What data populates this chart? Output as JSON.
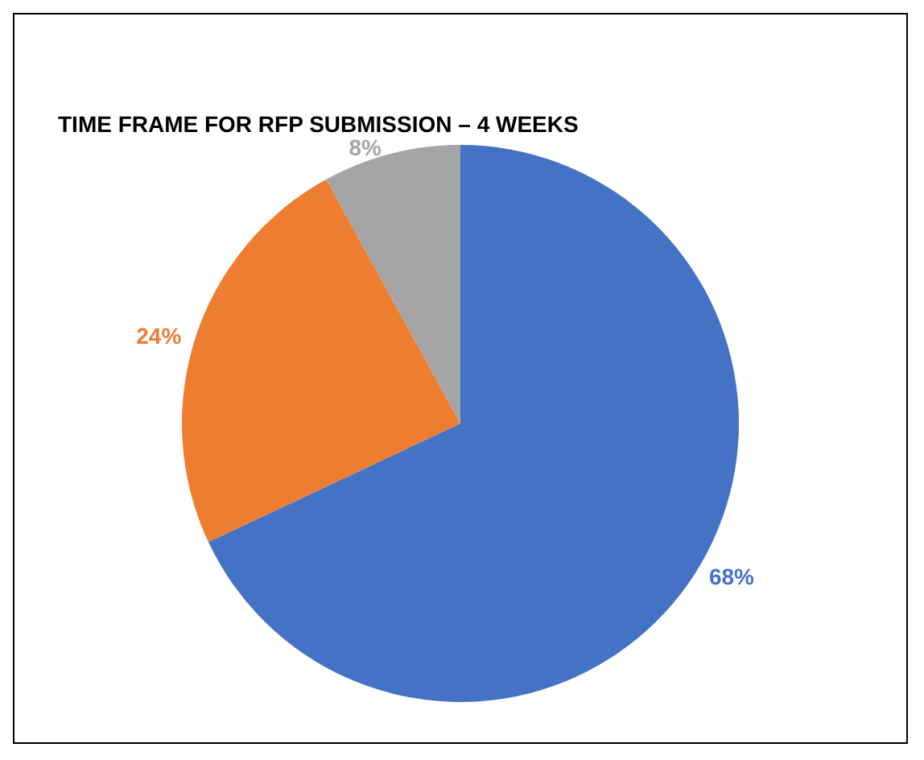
{
  "chart_data": {
    "type": "pie",
    "title": "TIME FRAME FOR RFP SUBMISSION – 4 WEEKS",
    "categories": [
      null,
      null,
      null
    ],
    "values": [
      68,
      24,
      8
    ],
    "colors": [
      "#4472c4",
      "#ed7d31",
      "#a5a5a5"
    ],
    "value_labels": [
      "68%",
      "24%",
      "8%"
    ]
  }
}
